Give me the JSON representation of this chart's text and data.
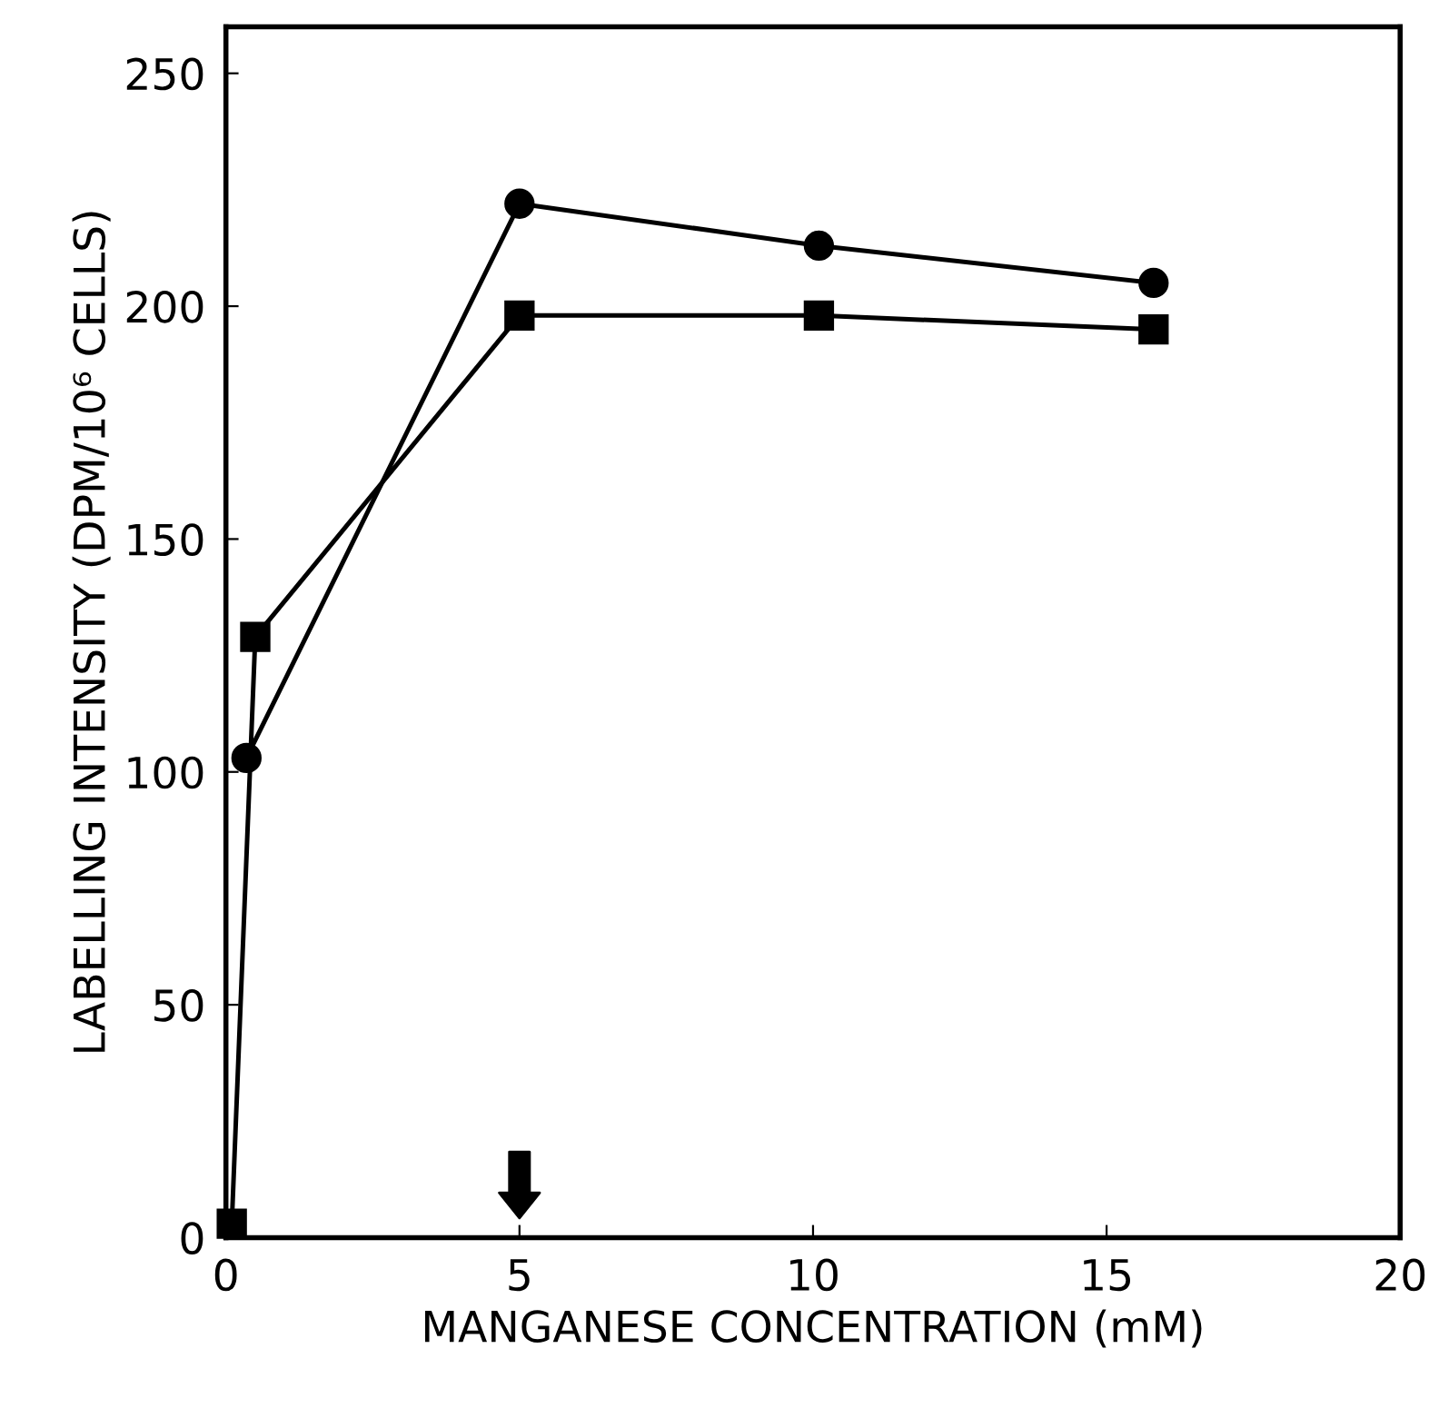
{
  "chart_data": {
    "type": "line",
    "xlabel": "MANGANESE CONCENTRATION (mM)",
    "ylabel": "LABELLING INTENSITY (DPM/10⁶ CELLS)",
    "xlim": [
      0,
      20
    ],
    "xticks": [
      0,
      5,
      10,
      15,
      20
    ],
    "ylim": [
      0,
      260
    ],
    "yticks": [
      0,
      50,
      100,
      150,
      200,
      250
    ],
    "line_style": "solid",
    "grid": false,
    "legend": false,
    "series": [
      {
        "color": "#000000",
        "marker": "circle",
        "x": [
          0.35,
          5,
          10.1,
          15.8
        ],
        "values": [
          103,
          222,
          213,
          205
        ]
      },
      {
        "color": "#000000",
        "marker": "square",
        "x": [
          0.1,
          0.5,
          5,
          10.1,
          15.8
        ],
        "values": [
          3,
          129,
          198,
          198,
          195
        ]
      }
    ]
  }
}
